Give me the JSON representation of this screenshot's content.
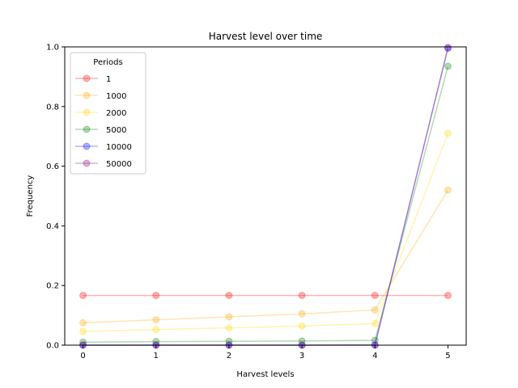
{
  "chart_data": {
    "type": "line",
    "title": "Harvest level over time",
    "xlabel": "Harvest levels",
    "ylabel": "Frequency",
    "x": [
      0,
      1,
      2,
      3,
      4,
      5
    ],
    "xlim": [
      -0.25,
      5.25
    ],
    "ylim": [
      0,
      1.0
    ],
    "xticks": [
      0,
      1,
      2,
      3,
      4,
      5
    ],
    "yticks": [
      0.0,
      0.2,
      0.4,
      0.6,
      0.8,
      1.0
    ],
    "ytick_labels": [
      "0.0",
      "0.2",
      "0.4",
      "0.6",
      "0.8",
      "1.0"
    ],
    "grid": false,
    "legend_title": "Periods",
    "legend_position": "upper-left",
    "series": [
      {
        "name": "1",
        "color": "#ff0000",
        "values": [
          0.1667,
          0.1667,
          0.1667,
          0.1667,
          0.1667,
          0.1667
        ]
      },
      {
        "name": "1000",
        "color": "#ffa500",
        "values": [
          0.075,
          0.085,
          0.095,
          0.105,
          0.118,
          0.52
        ]
      },
      {
        "name": "2000",
        "color": "#ffd700",
        "values": [
          0.046,
          0.052,
          0.058,
          0.064,
          0.072,
          0.71
        ]
      },
      {
        "name": "5000",
        "color": "#008000",
        "values": [
          0.01,
          0.012,
          0.013,
          0.014,
          0.016,
          0.935
        ]
      },
      {
        "name": "10000",
        "color": "#0000ff",
        "values": [
          0.0,
          0.0,
          0.0,
          0.0,
          0.001,
          0.995
        ]
      },
      {
        "name": "50000",
        "color": "#800080",
        "values": [
          0.0,
          0.0,
          0.0,
          0.0,
          0.0,
          0.998
        ]
      }
    ]
  }
}
